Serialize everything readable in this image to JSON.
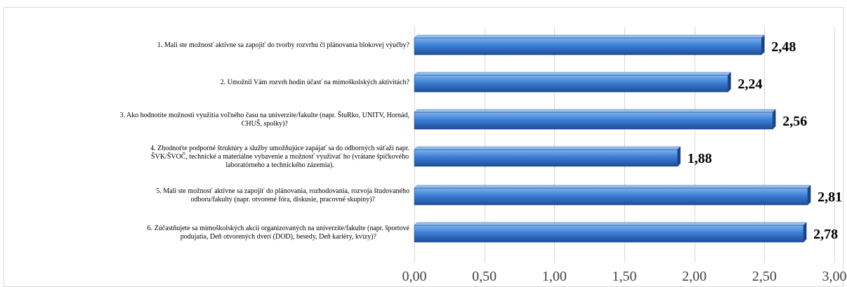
{
  "chart_data": {
    "type": "bar",
    "orientation": "horizontal",
    "categories": [
      "1. Mali ste možnosť aktívne sa zapojiť do tvorby rozvrhu či plánovania blokovej výučby?",
      "2. Umožnil Vám rozvrh hodín účasť na mimoškolských aktivitách?",
      "3. Ako hodnotíte možnosti využitia voľného času na univerzite/fakulte (napr. ŠtuRko, UNITV, Hornád, CHUŠ, spolky)?",
      "4. Zhodnoťte podporné štruktúry a služby umožňujúce zapájať sa do odborných súťaží napr. ŠVK/ŠVOČ, technické a materiálne vybavenie a možnosť využívať ho (vrátane špičkového laboratórneho a technického zázemia).",
      "5. Mali ste možnosť aktívne sa zapojiť do plánovania, rozhodovania, rozvoja študovaného odboru/fakulty (napr. otvorené fóra, diskusie, pracovné skupiny)?",
      "6. Zúčastňujete sa mimoškolských akcií organizovaných na univerzite/fakulte (napr. športové podujatia, Deň otvorených dverí (DOD), besedy, Deň kariéry, kvízy)?"
    ],
    "category_lines": [
      [
        "1. Mali ste možnosť aktívne sa zapojiť do tvorby rozvrhu či plánovania blokovej výučby?"
      ],
      [
        "2. Umožnil Vám rozvrh hodín účasť na mimoškolských aktivitách?"
      ],
      [
        "3. Ako hodnotíte možnosti využitia voľného času na univerzite/fakulte (napr. ŠtuRko, UNITV, Hornád,",
        "CHUŠ, spolky)?"
      ],
      [
        "4. Zhodnoťte podporné štruktúry a služby umožňujúce zapájať sa do odborných súťaží napr.",
        "ŠVK/ŠVOČ, technické a materiálne vybavenie a možnosť využívať ho (vrátane špičkového",
        "laboratórneho a technického zázemia)."
      ],
      [
        "5. Mali ste možnosť aktívne sa zapojiť do plánovania, rozhodovania, rozvoja študovaného",
        "odboru/fakulty (napr. otvorené fóra, diskusie, pracovné skupiny)?"
      ],
      [
        "6. Zúčastňujete sa mimoškolských akcií organizovaných na univerzite/fakulte (napr. športové",
        "podujatia, Deň otvorených dverí (DOD), besedy, Deň kariéry, kvízy)?"
      ]
    ],
    "values": [
      2.48,
      2.24,
      2.56,
      1.88,
      2.81,
      2.78
    ],
    "value_labels": [
      "2,48",
      "2,24",
      "2,56",
      "1,88",
      "2,81",
      "2,78"
    ],
    "xlim": [
      0,
      3
    ],
    "xticks": [
      0,
      0.5,
      1,
      1.5,
      2,
      2.5,
      3
    ],
    "xtick_labels": [
      "0,00",
      "0,50",
      "1,00",
      "1,50",
      "2,00",
      "2,50",
      "3,00"
    ],
    "title": "",
    "xlabel": "",
    "ylabel": "",
    "grid": true,
    "legend": "none",
    "colors": {
      "bar_light": "#7fb2ee",
      "bar_mid": "#3b7fd6",
      "bar_dark": "#1f4e99",
      "bar_edge": "#1a3f7a",
      "grid": "#d9d9d9",
      "border": "#d9d9d9",
      "text": "#000000",
      "tick_text": "#404040"
    }
  }
}
